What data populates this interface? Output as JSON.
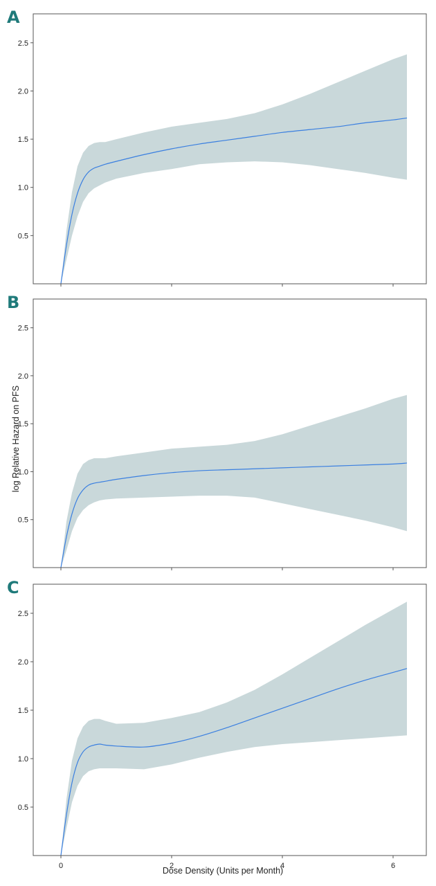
{
  "figure": {
    "xlabel": "Dose Density (Units per Month)",
    "ylabel": "log Relative Hazard on PFS"
  },
  "colors": {
    "line": "#3a7fe0",
    "band": "#c9d8da",
    "panel_letter": "#1f7a7a",
    "axis": "#555555"
  },
  "chart_data": [
    {
      "type": "line",
      "panel": "A",
      "xlim": [
        -0.5,
        6.6
      ],
      "ylim": [
        0,
        2.8
      ],
      "x_ticks": [
        0,
        2,
        4,
        6
      ],
      "y_ticks": [
        0.5,
        1.0,
        1.5,
        2.0,
        2.5
      ],
      "y_tick_labels": [
        "0.5",
        "1.0",
        "1.5",
        "2.0",
        "2.5"
      ],
      "show_x_tick_labels": false,
      "x": [
        0.0,
        0.1,
        0.2,
        0.3,
        0.4,
        0.5,
        0.6,
        0.7,
        0.8,
        1.0,
        1.5,
        2.0,
        2.5,
        3.0,
        3.5,
        4.0,
        4.5,
        5.0,
        5.5,
        6.0,
        6.25
      ],
      "y": [
        0.0,
        0.4,
        0.72,
        0.94,
        1.08,
        1.16,
        1.2,
        1.22,
        1.24,
        1.27,
        1.34,
        1.4,
        1.45,
        1.49,
        1.53,
        1.57,
        1.6,
        1.63,
        1.67,
        1.7,
        1.72
      ],
      "lower": [
        0.0,
        0.25,
        0.5,
        0.7,
        0.85,
        0.94,
        0.99,
        1.02,
        1.05,
        1.09,
        1.15,
        1.19,
        1.24,
        1.26,
        1.27,
        1.26,
        1.23,
        1.19,
        1.15,
        1.1,
        1.08
      ],
      "upper": [
        0.0,
        0.55,
        0.95,
        1.22,
        1.36,
        1.43,
        1.46,
        1.47,
        1.47,
        1.5,
        1.57,
        1.63,
        1.67,
        1.71,
        1.77,
        1.86,
        1.97,
        2.09,
        2.21,
        2.33,
        2.38
      ]
    },
    {
      "type": "line",
      "panel": "B",
      "xlim": [
        -0.5,
        6.6
      ],
      "ylim": [
        0,
        2.8
      ],
      "x_ticks": [
        0,
        2,
        4,
        6
      ],
      "y_ticks": [
        0.5,
        1.0,
        1.5,
        2.0,
        2.5
      ],
      "y_tick_labels": [
        "0.5",
        "1.0",
        "1.5",
        "2.0",
        "2.5"
      ],
      "show_x_tick_labels": false,
      "x": [
        0.0,
        0.1,
        0.2,
        0.3,
        0.4,
        0.5,
        0.6,
        0.7,
        0.8,
        1.0,
        1.5,
        2.0,
        2.5,
        3.0,
        3.5,
        4.0,
        4.5,
        5.0,
        5.5,
        6.0,
        6.25
      ],
      "y": [
        0.0,
        0.32,
        0.56,
        0.72,
        0.81,
        0.86,
        0.88,
        0.89,
        0.9,
        0.92,
        0.96,
        0.99,
        1.01,
        1.02,
        1.03,
        1.04,
        1.05,
        1.06,
        1.07,
        1.08,
        1.09
      ],
      "lower": [
        0.0,
        0.18,
        0.38,
        0.52,
        0.6,
        0.65,
        0.68,
        0.7,
        0.71,
        0.72,
        0.73,
        0.74,
        0.75,
        0.75,
        0.73,
        0.67,
        0.61,
        0.55,
        0.49,
        0.42,
        0.38
      ],
      "upper": [
        0.0,
        0.48,
        0.78,
        0.98,
        1.08,
        1.12,
        1.14,
        1.14,
        1.14,
        1.16,
        1.2,
        1.24,
        1.26,
        1.28,
        1.32,
        1.39,
        1.48,
        1.57,
        1.66,
        1.76,
        1.8
      ]
    },
    {
      "type": "line",
      "panel": "C",
      "xlim": [
        -0.5,
        6.6
      ],
      "ylim": [
        0,
        2.8
      ],
      "x_ticks": [
        0,
        2,
        4,
        6
      ],
      "x_tick_labels": [
        "0",
        "2",
        "4",
        "6"
      ],
      "y_ticks": [
        0.5,
        1.0,
        1.5,
        2.0,
        2.5
      ],
      "y_tick_labels": [
        "0.5",
        "1.0",
        "1.5",
        "2.0",
        "2.5"
      ],
      "show_x_tick_labels": true,
      "x": [
        0.0,
        0.1,
        0.2,
        0.3,
        0.4,
        0.5,
        0.6,
        0.7,
        0.8,
        1.0,
        1.5,
        2.0,
        2.5,
        3.0,
        3.5,
        4.0,
        4.5,
        5.0,
        5.5,
        6.0,
        6.25
      ],
      "y": [
        0.0,
        0.42,
        0.75,
        0.96,
        1.07,
        1.12,
        1.14,
        1.15,
        1.14,
        1.13,
        1.12,
        1.16,
        1.23,
        1.32,
        1.42,
        1.52,
        1.62,
        1.72,
        1.81,
        1.89,
        1.93
      ],
      "lower": [
        0.0,
        0.28,
        0.55,
        0.72,
        0.82,
        0.87,
        0.89,
        0.9,
        0.9,
        0.9,
        0.89,
        0.94,
        1.01,
        1.07,
        1.12,
        1.15,
        1.17,
        1.19,
        1.21,
        1.23,
        1.24
      ],
      "upper": [
        0.0,
        0.58,
        0.98,
        1.21,
        1.33,
        1.39,
        1.41,
        1.41,
        1.39,
        1.36,
        1.37,
        1.42,
        1.48,
        1.58,
        1.71,
        1.87,
        2.04,
        2.21,
        2.38,
        2.54,
        2.62
      ]
    }
  ]
}
